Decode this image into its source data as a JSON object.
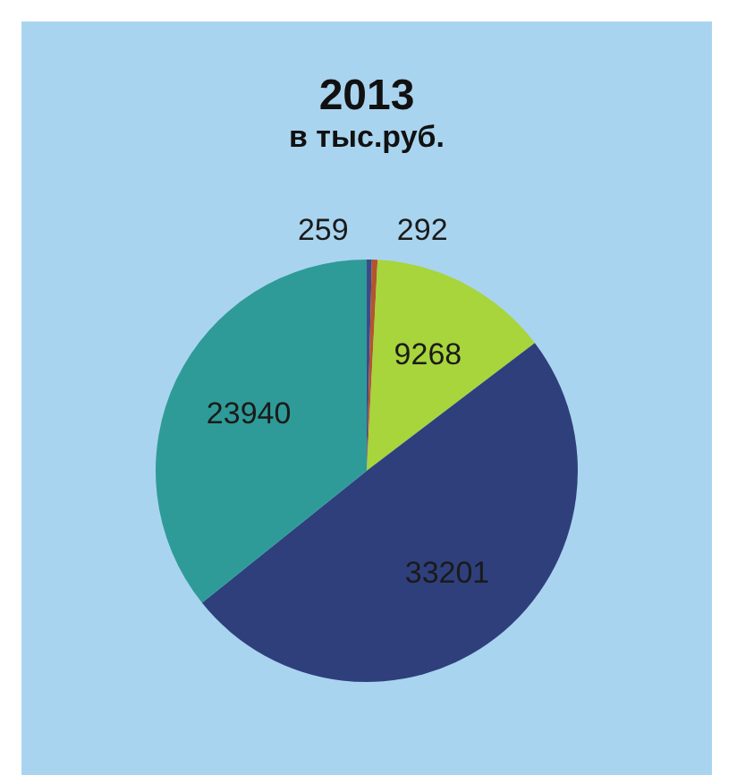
{
  "chart_data": {
    "type": "pie",
    "title": "2013",
    "subtitle": "в тыс.руб.",
    "categories": [
      null,
      null,
      null,
      null,
      null
    ],
    "values": [
      259,
      292,
      9268,
      33201,
      23940
    ],
    "colors": [
      "#3d4a8a",
      "#b5552c",
      "#a8d43c",
      "#2f3f7c",
      "#2f9b98"
    ],
    "data_labels": true,
    "legend": false
  }
}
